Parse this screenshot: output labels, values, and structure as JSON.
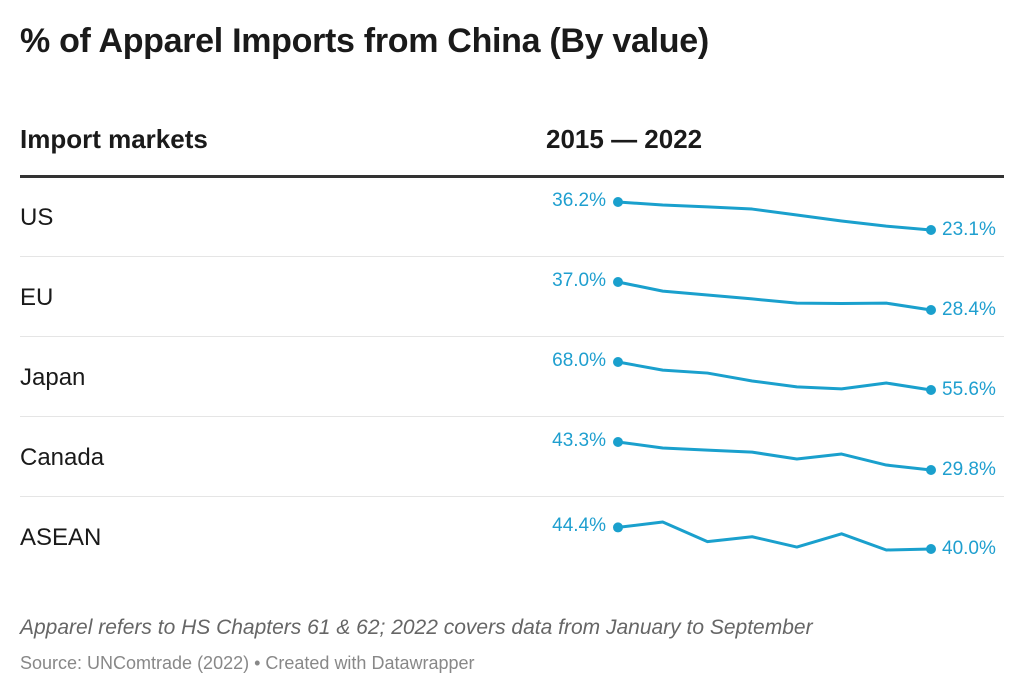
{
  "title": "% of Apparel Imports from China (By value)",
  "header": {
    "markets": "Import markets",
    "years": "2015 — 2022"
  },
  "colors": {
    "line": "#1aa0cd",
    "label": "#1f9fcf",
    "rule": "#333333"
  },
  "chart_data": {
    "type": "table",
    "years": [
      2015,
      2016,
      2017,
      2018,
      2019,
      2020,
      2021,
      2022
    ],
    "rows": [
      {
        "market": "US",
        "start_label": "36.2%",
        "end_label": "23.1%",
        "values": [
          36.2,
          34.8,
          33.9,
          32.9,
          30.1,
          27.3,
          24.9,
          23.1
        ]
      },
      {
        "market": "EU",
        "start_label": "37.0%",
        "end_label": "28.4%",
        "values": [
          37.0,
          34.2,
          33.0,
          31.8,
          30.5,
          30.4,
          30.5,
          28.4
        ]
      },
      {
        "market": "Japan",
        "start_label": "68.0%",
        "end_label": "55.6%",
        "values": [
          68.0,
          64.4,
          63.1,
          59.6,
          57.0,
          56.1,
          58.7,
          55.6
        ]
      },
      {
        "market": "Canada",
        "start_label": "43.3%",
        "end_label": "29.8%",
        "values": [
          43.3,
          40.4,
          39.4,
          38.4,
          35.1,
          37.5,
          32.2,
          29.8
        ]
      },
      {
        "market": "ASEAN",
        "start_label": "44.4%",
        "end_label": "40.0%",
        "values": [
          44.4,
          45.5,
          41.5,
          42.5,
          40.4,
          43.1,
          39.8,
          40.0
        ]
      }
    ]
  },
  "footer": {
    "note": "Apparel refers to HS Chapters 61 & 62; 2022 covers data from January to September",
    "source": "Source: UNComtrade (2022) • Created with Datawrapper"
  }
}
